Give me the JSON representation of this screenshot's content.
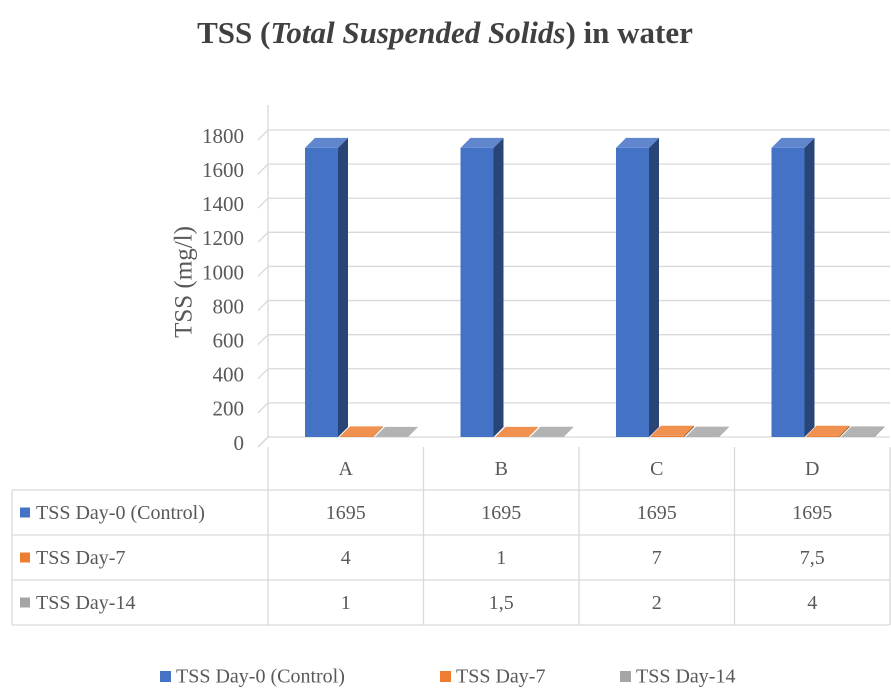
{
  "chart_data": {
    "type": "bar3d",
    "title": [
      "TSS (",
      "Total Suspended Solids",
      ") in water"
    ],
    "y_label": "TSS (mg/l)",
    "categories": [
      "A",
      "B",
      "C",
      "D"
    ],
    "series": [
      {
        "name": "TSS Day-0 (Control)",
        "color": "#4472c4",
        "values": [
          1695,
          1695,
          1695,
          1695
        ]
      },
      {
        "name": "TSS Day-7",
        "color": "#ed7d31",
        "values": [
          4,
          1,
          7,
          7.5
        ],
        "value_labels": [
          "4",
          "1",
          "7",
          "7,5"
        ]
      },
      {
        "name": "TSS Day-14",
        "color": "#a5a5a5",
        "values": [
          1,
          1.5,
          2,
          4
        ],
        "value_labels": [
          "1",
          "1,5",
          "2",
          "4"
        ]
      }
    ],
    "ylim": [
      0,
      1800
    ],
    "yticks": [
      0,
      200,
      400,
      600,
      800,
      1000,
      1200,
      1400,
      1600,
      1800
    ],
    "grid": true,
    "legend": "bottom",
    "data_table": true
  }
}
